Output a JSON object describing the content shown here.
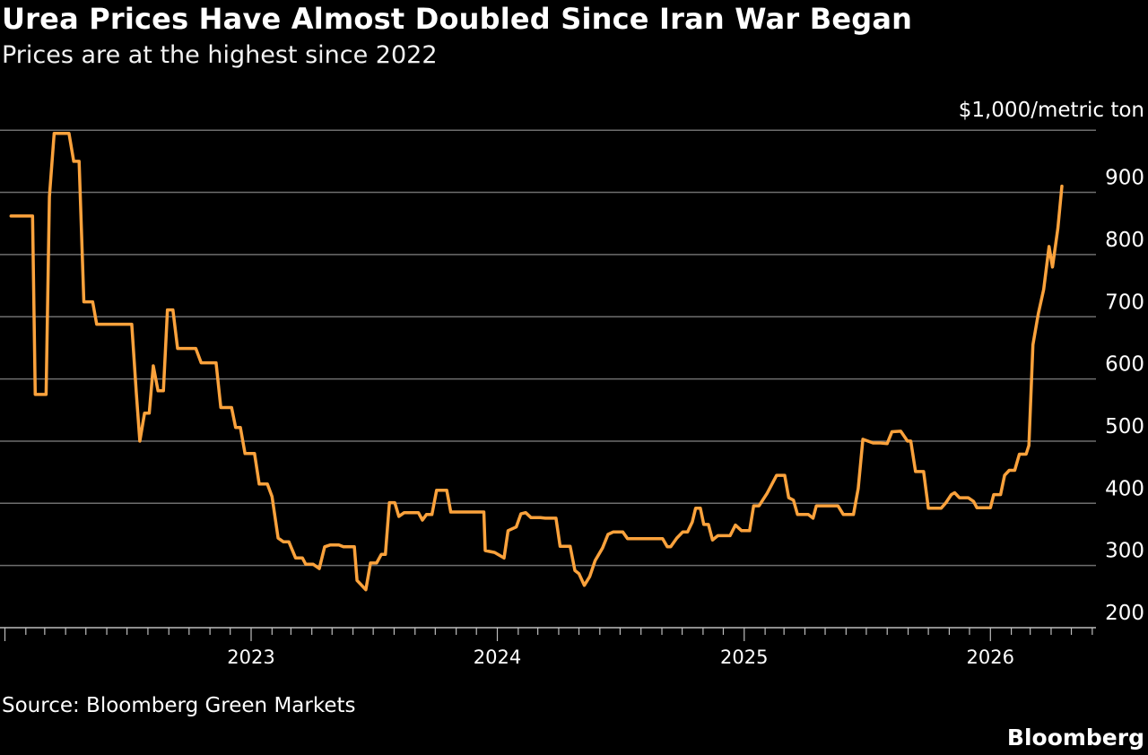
{
  "chart_data": {
    "type": "line",
    "title": "Urea Prices Have Almost Doubled Since Iran War Began",
    "subtitle": "Prices are at the highest since 2022",
    "ylabel": "$1,000/metric ton",
    "ylim": [
      200,
      1000
    ],
    "yticks": [
      200,
      300,
      400,
      500,
      600,
      700,
      800,
      900
    ],
    "xticks": [
      "2023",
      "2024",
      "2025",
      "2026"
    ],
    "xlim": [
      "2022-01-01",
      "2026-05-31"
    ],
    "grid": true,
    "line_color": "#fba23c",
    "series": [
      {
        "points": [
          [
            "2022-01-10",
            862
          ],
          [
            "2022-02-11",
            862
          ],
          [
            "2022-02-15",
            575
          ],
          [
            "2022-03-03",
            575
          ],
          [
            "2022-03-08",
            893
          ],
          [
            "2022-03-15",
            995
          ],
          [
            "2022-04-06",
            995
          ],
          [
            "2022-04-13",
            950
          ],
          [
            "2022-04-21",
            950
          ],
          [
            "2022-04-28",
            724
          ],
          [
            "2022-05-11",
            724
          ],
          [
            "2022-05-17",
            688
          ],
          [
            "2022-07-08",
            688
          ],
          [
            "2022-07-15",
            575
          ],
          [
            "2022-07-20",
            500
          ],
          [
            "2022-07-27",
            545
          ],
          [
            "2022-08-03",
            545
          ],
          [
            "2022-08-09",
            621
          ],
          [
            "2022-08-16",
            581
          ],
          [
            "2022-08-24",
            581
          ],
          [
            "2022-08-30",
            711
          ],
          [
            "2022-09-07",
            711
          ],
          [
            "2022-09-14",
            649
          ],
          [
            "2022-10-11",
            649
          ],
          [
            "2022-10-19",
            626
          ],
          [
            "2022-11-10",
            626
          ],
          [
            "2022-11-17",
            554
          ],
          [
            "2022-12-03",
            554
          ],
          [
            "2022-12-09",
            522
          ],
          [
            "2022-12-16",
            522
          ],
          [
            "2022-12-23",
            480
          ],
          [
            "2023-01-06",
            480
          ],
          [
            "2023-01-13",
            431
          ],
          [
            "2023-01-25",
            431
          ],
          [
            "2023-02-01",
            411
          ],
          [
            "2023-02-10",
            344
          ],
          [
            "2023-02-18",
            338
          ],
          [
            "2023-02-26",
            338
          ],
          [
            "2023-03-08",
            312
          ],
          [
            "2023-03-18",
            312
          ],
          [
            "2023-03-23",
            302
          ],
          [
            "2023-04-03",
            302
          ],
          [
            "2023-04-12",
            295
          ],
          [
            "2023-04-20",
            330
          ],
          [
            "2023-04-28",
            333
          ],
          [
            "2023-05-11",
            333
          ],
          [
            "2023-05-18",
            330
          ],
          [
            "2023-06-03",
            330
          ],
          [
            "2023-06-07",
            276
          ],
          [
            "2023-06-20",
            261
          ],
          [
            "2023-06-27",
            304
          ],
          [
            "2023-07-06",
            304
          ],
          [
            "2023-07-13",
            318
          ],
          [
            "2023-07-19",
            318
          ],
          [
            "2023-07-25",
            401
          ],
          [
            "2023-08-02",
            401
          ],
          [
            "2023-08-08",
            379
          ],
          [
            "2023-08-16",
            385
          ],
          [
            "2023-09-06",
            385
          ],
          [
            "2023-09-12",
            373
          ],
          [
            "2023-09-18",
            382
          ],
          [
            "2023-09-26",
            382
          ],
          [
            "2023-10-03",
            421
          ],
          [
            "2023-10-18",
            421
          ],
          [
            "2023-10-24",
            386
          ],
          [
            "2023-12-12",
            386
          ],
          [
            "2023-12-14",
            324
          ],
          [
            "2023-12-28",
            321
          ],
          [
            "2024-01-11",
            312
          ],
          [
            "2024-01-17",
            356
          ],
          [
            "2024-01-29",
            362
          ],
          [
            "2024-02-05",
            383
          ],
          [
            "2024-02-12",
            385
          ],
          [
            "2024-02-20",
            377
          ],
          [
            "2024-03-05",
            377
          ],
          [
            "2024-03-12",
            376
          ],
          [
            "2024-03-28",
            376
          ],
          [
            "2024-04-03",
            331
          ],
          [
            "2024-04-18",
            331
          ],
          [
            "2024-04-25",
            292
          ],
          [
            "2024-05-01",
            287
          ],
          [
            "2024-05-09",
            268
          ],
          [
            "2024-05-17",
            282
          ],
          [
            "2024-05-25",
            308
          ],
          [
            "2024-06-05",
            328
          ],
          [
            "2024-06-13",
            350
          ],
          [
            "2024-06-21",
            354
          ],
          [
            "2024-07-05",
            354
          ],
          [
            "2024-07-12",
            343
          ],
          [
            "2024-09-02",
            343
          ],
          [
            "2024-09-09",
            330
          ],
          [
            "2024-09-14",
            330
          ],
          [
            "2024-09-23",
            344
          ],
          [
            "2024-10-02",
            354
          ],
          [
            "2024-10-09",
            354
          ],
          [
            "2024-10-16",
            370
          ],
          [
            "2024-10-21",
            392
          ],
          [
            "2024-10-28",
            392
          ],
          [
            "2024-11-02",
            366
          ],
          [
            "2024-11-09",
            366
          ],
          [
            "2024-11-15",
            341
          ],
          [
            "2024-11-23",
            348
          ],
          [
            "2024-12-11",
            348
          ],
          [
            "2024-12-19",
            365
          ],
          [
            "2024-12-28",
            356
          ],
          [
            "2025-01-09",
            356
          ],
          [
            "2025-01-15",
            396
          ],
          [
            "2025-01-23",
            396
          ],
          [
            "2025-02-04",
            416
          ],
          [
            "2025-02-18",
            445
          ],
          [
            "2025-03-02",
            445
          ],
          [
            "2025-03-08",
            409
          ],
          [
            "2025-03-15",
            405
          ],
          [
            "2025-03-21",
            382
          ],
          [
            "2025-04-06",
            382
          ],
          [
            "2025-04-13",
            376
          ],
          [
            "2025-04-18",
            396
          ],
          [
            "2025-05-20",
            396
          ],
          [
            "2025-05-28",
            382
          ],
          [
            "2025-06-12",
            382
          ],
          [
            "2025-06-19",
            424
          ],
          [
            "2025-06-26",
            503
          ],
          [
            "2025-07-11",
            497
          ],
          [
            "2025-07-22",
            497
          ],
          [
            "2025-08-01",
            496
          ],
          [
            "2025-08-08",
            515
          ],
          [
            "2025-08-21",
            516
          ],
          [
            "2025-08-31",
            500
          ],
          [
            "2025-09-05",
            500
          ],
          [
            "2025-09-12",
            451
          ],
          [
            "2025-09-24",
            451
          ],
          [
            "2025-10-01",
            392
          ],
          [
            "2025-10-20",
            392
          ],
          [
            "2025-10-27",
            401
          ],
          [
            "2025-11-04",
            414
          ],
          [
            "2025-11-09",
            417
          ],
          [
            "2025-11-16",
            409
          ],
          [
            "2025-11-29",
            409
          ],
          [
            "2025-12-07",
            403
          ],
          [
            "2025-12-12",
            393
          ],
          [
            "2026-01-01",
            393
          ],
          [
            "2026-01-06",
            414
          ],
          [
            "2026-01-16",
            414
          ],
          [
            "2026-01-22",
            445
          ],
          [
            "2026-01-29",
            453
          ],
          [
            "2026-02-06",
            453
          ],
          [
            "2026-02-13",
            479
          ],
          [
            "2026-02-23",
            479
          ],
          [
            "2026-02-27",
            493
          ],
          [
            "2026-03-05",
            655
          ],
          [
            "2026-03-13",
            705
          ],
          [
            "2026-03-21",
            744
          ],
          [
            "2026-03-29",
            813
          ],
          [
            "2026-04-03",
            780
          ],
          [
            "2026-04-11",
            842
          ],
          [
            "2026-04-17",
            910
          ]
        ]
      }
    ],
    "source": "Source: Bloomberg Green Markets"
  },
  "branding": {
    "logo_text": "Bloomberg"
  }
}
